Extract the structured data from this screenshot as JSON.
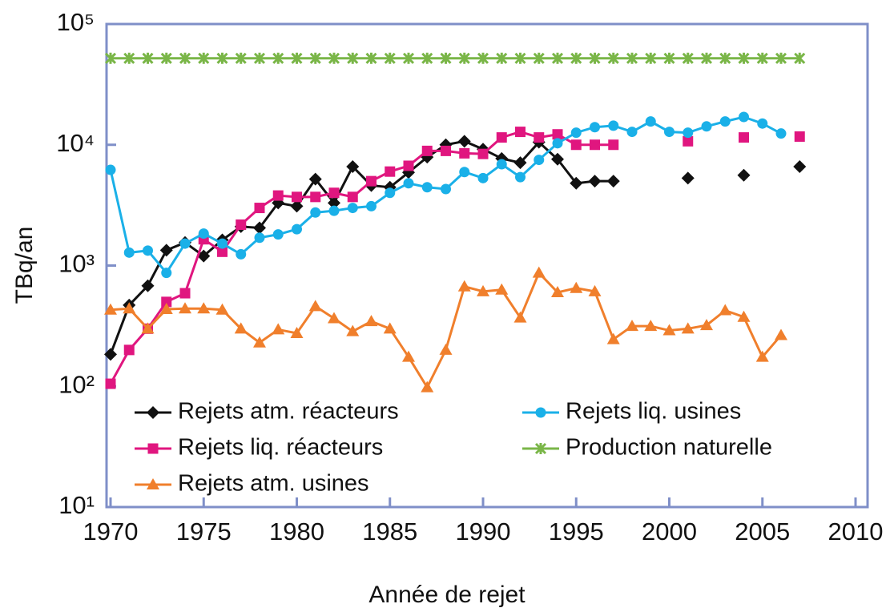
{
  "chart_data": {
    "type": "line",
    "x_label": "Année de rejet",
    "y_label": "TBq/an",
    "log_scale": true,
    "grid": false,
    "legend": "lower left",
    "xlim": [
      1970,
      2010
    ],
    "xticks": [
      1970,
      1975,
      1980,
      1985,
      1990,
      1995,
      2000,
      2005,
      2010
    ],
    "ylim": [
      10,
      100000
    ],
    "yticks": [
      {
        "value": 10,
        "label": "10¹"
      },
      {
        "value": 100,
        "label": "10²"
      },
      {
        "value": 1000,
        "label": "10³"
      },
      {
        "value": 10000,
        "label": "10⁴"
      },
      {
        "value": 100000,
        "label": "10⁵"
      }
    ],
    "x": [
      1970,
      1971,
      1972,
      1973,
      1974,
      1975,
      1976,
      1977,
      1978,
      1979,
      1980,
      1981,
      1982,
      1983,
      1984,
      1985,
      1986,
      1987,
      1988,
      1989,
      1990,
      1991,
      1992,
      1993,
      1994,
      1995,
      1996,
      1997,
      1998,
      1999,
      2000,
      2001,
      2002,
      2003,
      2004,
      2005,
      2006,
      2007
    ],
    "series": [
      {
        "name": "Rejets atm. réacteurs",
        "color": "#111111",
        "marker": "diamond",
        "values": [
          184,
          470,
          680,
          1340,
          1550,
          1200,
          1630,
          2100,
          2050,
          3300,
          3100,
          5200,
          3300,
          6600,
          4600,
          4450,
          5900,
          7900,
          10000,
          10700,
          9200,
          7700,
          7100,
          10500,
          7600,
          4800,
          5000,
          5000,
          null,
          null,
          null,
          5300,
          null,
          null,
          5600,
          null,
          null,
          6600
        ]
      },
      {
        "name": "Rejets liq. réacteurs",
        "color": "#e0167f",
        "marker": "square",
        "values": [
          105,
          200,
          300,
          500,
          590,
          1650,
          1300,
          2180,
          3000,
          3800,
          3700,
          3700,
          4000,
          3700,
          5000,
          6000,
          6700,
          8900,
          8900,
          8500,
          8400,
          11500,
          12800,
          11500,
          12200,
          10000,
          10000,
          10000,
          null,
          null,
          null,
          10700,
          null,
          null,
          11500,
          null,
          null,
          11700
        ]
      },
      {
        "name": "Rejets atm. usines",
        "color": "#f07f2c",
        "marker": "triangle",
        "values": [
          430,
          440,
          300,
          435,
          440,
          440,
          430,
          300,
          230,
          295,
          275,
          460,
          365,
          285,
          345,
          300,
          175,
          98,
          200,
          670,
          610,
          630,
          370,
          870,
          600,
          650,
          610,
          245,
          315,
          315,
          290,
          300,
          320,
          425,
          375,
          175,
          265,
          null
        ]
      },
      {
        "name": "Rejets liq. usines",
        "color": "#1ab0e8",
        "marker": "circle",
        "values": [
          6200,
          1280,
          1330,
          870,
          1520,
          1840,
          1520,
          1240,
          1700,
          1810,
          2000,
          2750,
          2840,
          3000,
          3100,
          4000,
          4800,
          4450,
          4300,
          5950,
          5300,
          6900,
          5400,
          7500,
          10300,
          12600,
          14000,
          14400,
          12800,
          15600,
          12800,
          12600,
          14200,
          15600,
          17000,
          15000,
          12400,
          null
        ]
      },
      {
        "name": "Production naturelle",
        "color": "#7ab648",
        "marker": "star",
        "values": [
          52000,
          52000,
          52000,
          52000,
          52000,
          52000,
          52000,
          52000,
          52000,
          52000,
          52000,
          52000,
          52000,
          52000,
          52000,
          52000,
          52000,
          52000,
          52000,
          52000,
          52000,
          52000,
          52000,
          52000,
          52000,
          52000,
          52000,
          52000,
          52000,
          52000,
          52000,
          52000,
          52000,
          52000,
          52000,
          52000,
          52000,
          52000
        ]
      }
    ]
  }
}
